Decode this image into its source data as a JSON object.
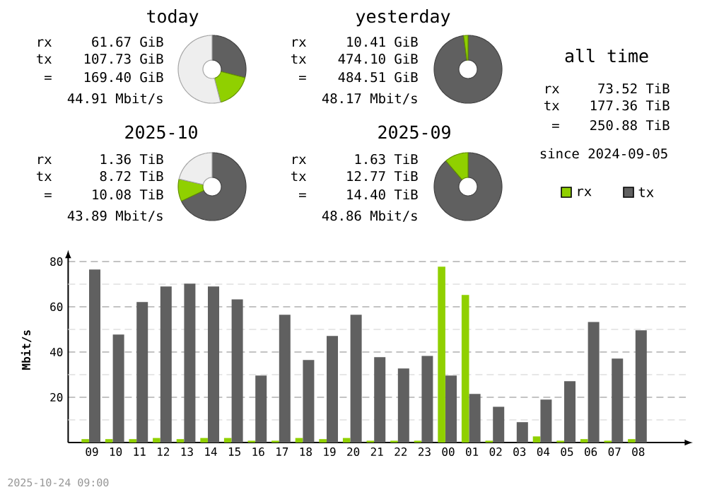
{
  "chart_data": [
    {
      "type": "donut",
      "title": "today",
      "categories": [
        null,
        null,
        null
      ],
      "values": [
        29,
        17,
        54
      ],
      "colors": [
        "#606060",
        "#90d000",
        "#eeeeee"
      ],
      "annotations": [
        "rx",
        "61.67 GiB",
        "tx",
        "107.73 GiB",
        "=",
        "169.40 GiB",
        "44.91 Mbit/s"
      ]
    },
    {
      "type": "donut",
      "title": "yesterday",
      "categories": [
        null,
        null
      ],
      "values": [
        97.9,
        2.1
      ],
      "colors": [
        "#606060",
        "#90d000"
      ],
      "annotations": [
        "rx",
        "10.41 GiB",
        "tx",
        "474.10 GiB",
        "=",
        "484.51 GiB",
        "48.17 Mbit/s"
      ]
    },
    {
      "type": "donut",
      "title": "2025-10",
      "categories": [
        null,
        null,
        null
      ],
      "values": [
        68,
        10.6,
        21.4
      ],
      "colors": [
        "#606060",
        "#90d000",
        "#eeeeee"
      ],
      "annotations": [
        "rx",
        "1.36 TiB",
        "tx",
        "8.72 TiB",
        "=",
        "10.08 TiB",
        "43.89 Mbit/s"
      ]
    },
    {
      "type": "donut",
      "title": "2025-09",
      "categories": [
        null,
        null
      ],
      "values": [
        88.7,
        11.3
      ],
      "colors": [
        "#606060",
        "#90d000"
      ],
      "annotations": [
        "rx",
        "1.63 TiB",
        "tx",
        "12.77 TiB",
        "=",
        "14.40 TiB",
        "48.86 Mbit/s"
      ]
    },
    {
      "type": "other",
      "title": "all time",
      "annotations": [
        "rx",
        "73.52 TiB",
        "tx",
        "177.36 TiB",
        "=",
        "250.88 TiB",
        "since 2024-09-05"
      ]
    },
    {
      "type": "bar",
      "ylabel": "Mbit/s",
      "categories": [
        "09",
        "10",
        "11",
        "12",
        "13",
        "14",
        "15",
        "16",
        "17",
        "18",
        "19",
        "20",
        "21",
        "22",
        "23",
        "00",
        "01",
        "02",
        "03",
        "04",
        "05",
        "06",
        "07",
        "08"
      ],
      "series": [
        {
          "name": "rx",
          "color": "#90d000",
          "values": [
            1.5,
            1.5,
            1.5,
            2,
            1.5,
            2,
            2,
            0.8,
            0.8,
            2,
            1.5,
            2,
            0.8,
            0.8,
            0.8,
            77.7,
            65.2,
            0.8,
            0,
            2.7,
            0.8,
            1.5,
            0.8,
            1.5
          ]
        },
        {
          "name": "tx",
          "color": "#606060",
          "values": [
            76.5,
            47.7,
            62.1,
            69,
            70.2,
            69,
            63.3,
            29.6,
            56.5,
            36.5,
            47.1,
            56.5,
            37.7,
            32.7,
            38.3,
            29.6,
            21.5,
            15.8,
            9,
            19,
            27.1,
            53.3,
            37.1,
            49.6
          ]
        }
      ],
      "ylim": [
        0,
        82
      ],
      "yticks": [
        {
          "value": 10,
          "label": null
        },
        20,
        {
          "value": 30,
          "label": null
        },
        40,
        {
          "value": 50,
          "label": null
        },
        60,
        {
          "value": 70,
          "label": null
        },
        80
      ],
      "grid": "y",
      "legend": "top right",
      "annotations": [
        "2025-10-24 09:00"
      ]
    }
  ]
}
